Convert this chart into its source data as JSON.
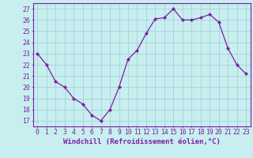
{
  "x": [
    0,
    1,
    2,
    3,
    4,
    5,
    6,
    7,
    8,
    9,
    10,
    11,
    12,
    13,
    14,
    15,
    16,
    17,
    18,
    19,
    20,
    21,
    22,
    23
  ],
  "y": [
    23.0,
    22.0,
    20.5,
    20.0,
    19.0,
    18.5,
    17.5,
    17.0,
    18.0,
    20.0,
    22.5,
    23.3,
    24.8,
    26.1,
    26.2,
    27.0,
    26.0,
    26.0,
    26.2,
    26.5,
    25.8,
    23.5,
    22.0,
    21.2
  ],
  "line_color": "#7b1fa2",
  "marker": "D",
  "marker_size": 2.2,
  "bg_color": "#c8eef0",
  "grid_color": "#9ecdd1",
  "axis_label_color": "#7b1fa2",
  "tick_label_color": "#7b1fa2",
  "xlabel": "Windchill (Refroidissement éolien,°C)",
  "xlabel_fontsize": 6.5,
  "ytick_labels": [
    "17",
    "18",
    "19",
    "20",
    "21",
    "22",
    "23",
    "24",
    "25",
    "26",
    "27"
  ],
  "ytick_vals": [
    17,
    18,
    19,
    20,
    21,
    22,
    23,
    24,
    25,
    26,
    27
  ],
  "xlim": [
    -0.5,
    23.5
  ],
  "ylim": [
    16.5,
    27.5
  ],
  "tick_fontsize": 5.8,
  "linewidth": 0.9
}
